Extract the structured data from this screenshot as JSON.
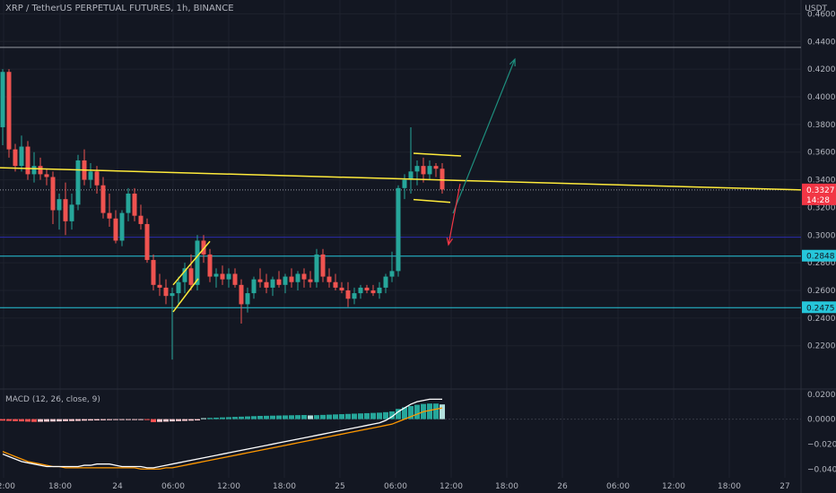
{
  "header": {
    "title": "XRP / TetherUS PERPETUAL FUTURES, 1h, BINANCE",
    "currency": "USDT"
  },
  "macd": {
    "label": "MACD (12, 26, close, 9)",
    "ticks": [
      "0.0200",
      "0.0000",
      "−0.0200",
      "−0.0400"
    ]
  },
  "chart_data": {
    "type": "candlestick",
    "interval": "1h",
    "ylim": [
      0.19,
      0.47
    ],
    "y_ticks": [
      "0.4600",
      "0.4400",
      "0.4200",
      "0.4000",
      "0.3800",
      "0.3600",
      "0.3400",
      "0.3200",
      "0.3000",
      "0.2800",
      "0.2600",
      "0.2400",
      "0.2200"
    ],
    "x_ticks": [
      "12:00",
      "18:00",
      "24",
      "06:00",
      "12:00",
      "18:00",
      "25",
      "06:00",
      "12:00",
      "18:00",
      "26",
      "06:00",
      "12:00",
      "18:00",
      "27"
    ],
    "last_price": {
      "label": "0.3327",
      "countdown": "14:28",
      "value": 0.3327,
      "color": "#f23645"
    },
    "levels": [
      {
        "value": 0.4357,
        "color": "#9598a1",
        "label": ""
      },
      {
        "value": 0.2985,
        "color": "#2d2db0",
        "label": ""
      },
      {
        "value": 0.2848,
        "color": "#26c6da",
        "label": "0.2848"
      },
      {
        "value": 0.2475,
        "color": "#26c6da",
        "label": "0.2475"
      }
    ],
    "candles": [
      [
        0.378,
        0.42,
        0.365,
        0.418
      ],
      [
        0.418,
        0.42,
        0.356,
        0.362
      ],
      [
        0.362,
        0.366,
        0.346,
        0.35
      ],
      [
        0.35,
        0.372,
        0.346,
        0.364
      ],
      [
        0.364,
        0.368,
        0.34,
        0.344
      ],
      [
        0.344,
        0.36,
        0.338,
        0.35
      ],
      [
        0.35,
        0.356,
        0.34,
        0.344
      ],
      [
        0.344,
        0.348,
        0.336,
        0.342
      ],
      [
        0.342,
        0.346,
        0.308,
        0.318
      ],
      [
        0.318,
        0.33,
        0.304,
        0.326
      ],
      [
        0.326,
        0.338,
        0.3,
        0.31
      ],
      [
        0.31,
        0.33,
        0.304,
        0.322
      ],
      [
        0.322,
        0.358,
        0.318,
        0.354
      ],
      [
        0.354,
        0.362,
        0.336,
        0.34
      ],
      [
        0.34,
        0.352,
        0.334,
        0.346
      ],
      [
        0.346,
        0.35,
        0.33,
        0.336
      ],
      [
        0.336,
        0.342,
        0.312,
        0.316
      ],
      [
        0.316,
        0.33,
        0.306,
        0.312
      ],
      [
        0.312,
        0.318,
        0.294,
        0.296
      ],
      [
        0.296,
        0.318,
        0.292,
        0.316
      ],
      [
        0.316,
        0.334,
        0.31,
        0.33
      ],
      [
        0.33,
        0.334,
        0.31,
        0.314
      ],
      [
        0.314,
        0.322,
        0.304,
        0.308
      ],
      [
        0.308,
        0.312,
        0.28,
        0.282
      ],
      [
        0.282,
        0.286,
        0.26,
        0.264
      ],
      [
        0.264,
        0.272,
        0.256,
        0.262
      ],
      [
        0.262,
        0.268,
        0.25,
        0.256
      ],
      [
        0.256,
        0.262,
        0.21,
        0.258
      ],
      [
        0.258,
        0.27,
        0.25,
        0.266
      ],
      [
        0.266,
        0.28,
        0.258,
        0.276
      ],
      [
        0.276,
        0.286,
        0.26,
        0.264
      ],
      [
        0.264,
        0.3,
        0.26,
        0.296
      ],
      [
        0.296,
        0.3,
        0.28,
        0.286
      ],
      [
        0.286,
        0.29,
        0.266,
        0.27
      ],
      [
        0.27,
        0.276,
        0.262,
        0.272
      ],
      [
        0.272,
        0.278,
        0.264,
        0.268
      ],
      [
        0.268,
        0.276,
        0.262,
        0.272
      ],
      [
        0.272,
        0.276,
        0.262,
        0.264
      ],
      [
        0.264,
        0.268,
        0.236,
        0.25
      ],
      [
        0.25,
        0.262,
        0.244,
        0.258
      ],
      [
        0.258,
        0.27,
        0.254,
        0.268
      ],
      [
        0.268,
        0.276,
        0.262,
        0.266
      ],
      [
        0.266,
        0.272,
        0.258,
        0.262
      ],
      [
        0.262,
        0.27,
        0.256,
        0.268
      ],
      [
        0.268,
        0.274,
        0.262,
        0.264
      ],
      [
        0.264,
        0.272,
        0.258,
        0.27
      ],
      [
        0.27,
        0.276,
        0.262,
        0.266
      ],
      [
        0.266,
        0.274,
        0.26,
        0.272
      ],
      [
        0.272,
        0.276,
        0.262,
        0.268
      ],
      [
        0.268,
        0.274,
        0.262,
        0.266
      ],
      [
        0.266,
        0.29,
        0.262,
        0.286
      ],
      [
        0.286,
        0.29,
        0.266,
        0.27
      ],
      [
        0.27,
        0.276,
        0.262,
        0.266
      ],
      [
        0.266,
        0.272,
        0.26,
        0.262
      ],
      [
        0.262,
        0.266,
        0.258,
        0.26
      ],
      [
        0.26,
        0.266,
        0.248,
        0.254
      ],
      [
        0.254,
        0.262,
        0.25,
        0.258
      ],
      [
        0.258,
        0.264,
        0.254,
        0.262
      ],
      [
        0.262,
        0.264,
        0.258,
        0.26
      ],
      [
        0.26,
        0.264,
        0.256,
        0.258
      ],
      [
        0.258,
        0.266,
        0.254,
        0.262
      ],
      [
        0.262,
        0.272,
        0.258,
        0.27
      ],
      [
        0.27,
        0.288,
        0.266,
        0.274
      ],
      [
        0.274,
        0.336,
        0.27,
        0.334
      ],
      [
        0.334,
        0.344,
        0.326,
        0.34
      ],
      [
        0.34,
        0.378,
        0.33,
        0.346
      ],
      [
        0.346,
        0.354,
        0.336,
        0.35
      ],
      [
        0.35,
        0.356,
        0.338,
        0.344
      ],
      [
        0.344,
        0.354,
        0.34,
        0.35
      ],
      [
        0.35,
        0.352,
        0.342,
        0.348
      ],
      [
        0.348,
        0.352,
        0.33,
        0.333
      ]
    ],
    "macd_histogram": [
      -0.0012,
      -0.0014,
      -0.0016,
      -0.0018,
      -0.002,
      -0.0022,
      -0.0021,
      -0.002,
      -0.0019,
      -0.0018,
      -0.0016,
      -0.0015,
      -0.0014,
      -0.0012,
      -0.0011,
      -0.001,
      -0.0009,
      -0.0008,
      -0.0006,
      -0.0005,
      -0.0004,
      -0.0003,
      -0.0002,
      -0.0003,
      -0.0024,
      -0.0022,
      -0.002,
      -0.0018,
      -0.0016,
      -0.0014,
      -0.0012,
      -0.001,
      0.0008,
      0.001,
      0.0012,
      0.0014,
      0.0016,
      0.0018,
      0.002,
      0.0022,
      0.0024,
      0.0026,
      0.0027,
      0.0028,
      0.0029,
      0.003,
      0.0031,
      0.0032,
      0.0033,
      0.003,
      0.0032,
      0.0034,
      0.0036,
      0.0038,
      0.004,
      0.0042,
      0.0044,
      0.0046,
      0.0048,
      0.005,
      0.0052,
      0.0056,
      0.0062,
      0.0082,
      0.0095,
      0.0105,
      0.0115,
      0.0122,
      0.0125,
      0.0125,
      0.0118
    ],
    "macd_line": [
      -0.028,
      -0.03,
      -0.032,
      -0.034,
      -0.035,
      -0.036,
      -0.037,
      -0.038,
      -0.038,
      -0.038,
      -0.038,
      -0.038,
      -0.038,
      -0.037,
      -0.037,
      -0.036,
      -0.036,
      -0.036,
      -0.037,
      -0.038,
      -0.038,
      -0.038,
      -0.038,
      -0.039,
      -0.039,
      -0.038,
      -0.037,
      -0.036,
      -0.035,
      -0.034,
      -0.033,
      -0.032,
      -0.031,
      -0.03,
      -0.029,
      -0.028,
      -0.027,
      -0.026,
      -0.025,
      -0.024,
      -0.023,
      -0.022,
      -0.021,
      -0.02,
      -0.019,
      -0.018,
      -0.017,
      -0.016,
      -0.015,
      -0.014,
      -0.013,
      -0.012,
      -0.011,
      -0.01,
      -0.009,
      -0.008,
      -0.007,
      -0.006,
      -0.005,
      -0.004,
      -0.003,
      -0.001,
      0.002,
      0.006,
      0.009,
      0.012,
      0.014,
      0.015,
      0.016,
      0.016,
      0.016
    ],
    "signal_line": [
      -0.026,
      -0.028,
      -0.03,
      -0.032,
      -0.034,
      -0.035,
      -0.036,
      -0.037,
      -0.038,
      -0.038,
      -0.039,
      -0.039,
      -0.039,
      -0.039,
      -0.039,
      -0.039,
      -0.039,
      -0.039,
      -0.039,
      -0.039,
      -0.039,
      -0.039,
      -0.04,
      -0.04,
      -0.04,
      -0.04,
      -0.039,
      -0.039,
      -0.038,
      -0.037,
      -0.036,
      -0.035,
      -0.034,
      -0.033,
      -0.032,
      -0.031,
      -0.03,
      -0.029,
      -0.028,
      -0.027,
      -0.026,
      -0.025,
      -0.024,
      -0.023,
      -0.022,
      -0.021,
      -0.02,
      -0.019,
      -0.018,
      -0.017,
      -0.016,
      -0.015,
      -0.014,
      -0.013,
      -0.012,
      -0.011,
      -0.01,
      -0.009,
      -0.008,
      -0.007,
      -0.006,
      -0.005,
      -0.004,
      -0.002,
      0.0,
      0.002,
      0.004,
      0.006,
      0.007,
      0.008,
      0.009
    ],
    "colors": {
      "up": "#26a69a",
      "down": "#ef5350",
      "trendline": "#ffeb3b",
      "arrow_up": "#1e8f7e",
      "arrow_down": "#f23645",
      "macd_line": "#ffffff",
      "signal_line": "#ff9800"
    }
  }
}
